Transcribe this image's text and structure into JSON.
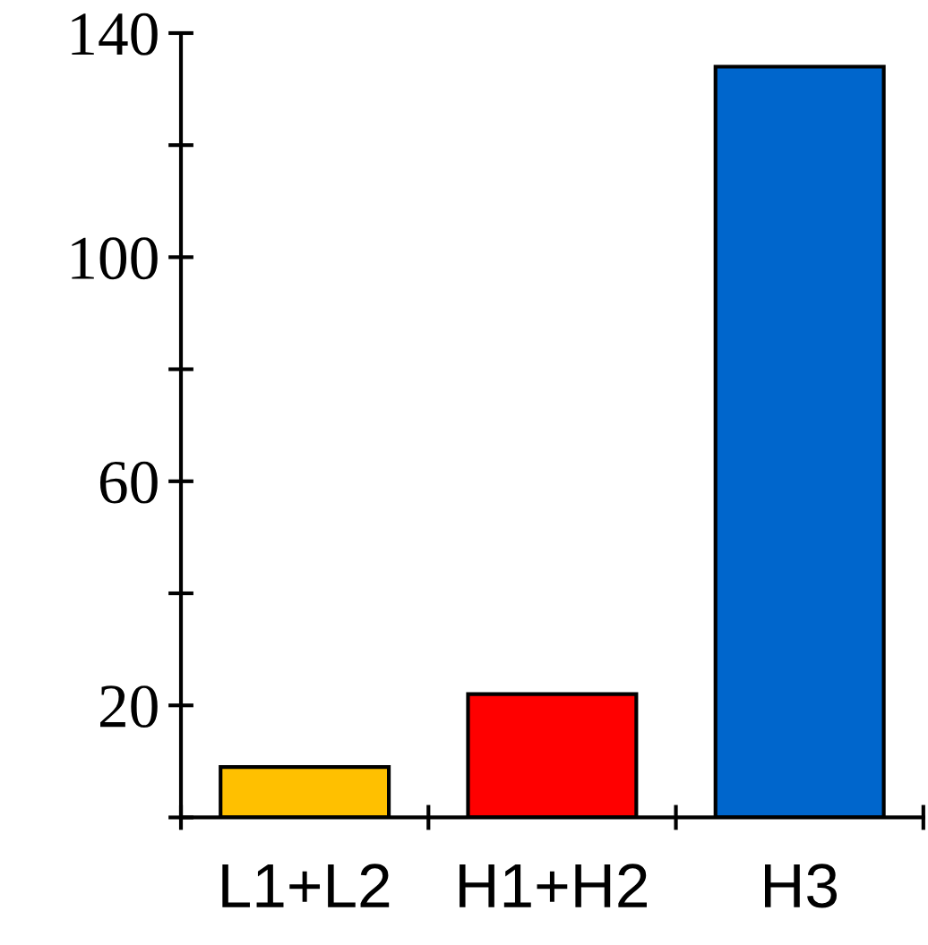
{
  "chart_data": {
    "type": "bar",
    "categories": [
      "L1+L2",
      "H1+H2",
      "H3"
    ],
    "values": [
      9,
      22,
      134
    ],
    "colors": [
      "#ffc000",
      "#ff0000",
      "#0066cc"
    ],
    "ylim": [
      0,
      140
    ],
    "yticks": [
      {
        "value": 0,
        "label": null
      },
      20,
      {
        "value": 40,
        "label": null
      },
      60,
      {
        "value": 80,
        "label": null
      },
      100,
      {
        "value": 120,
        "label": null
      },
      140
    ],
    "grid": false,
    "legend": false
  }
}
